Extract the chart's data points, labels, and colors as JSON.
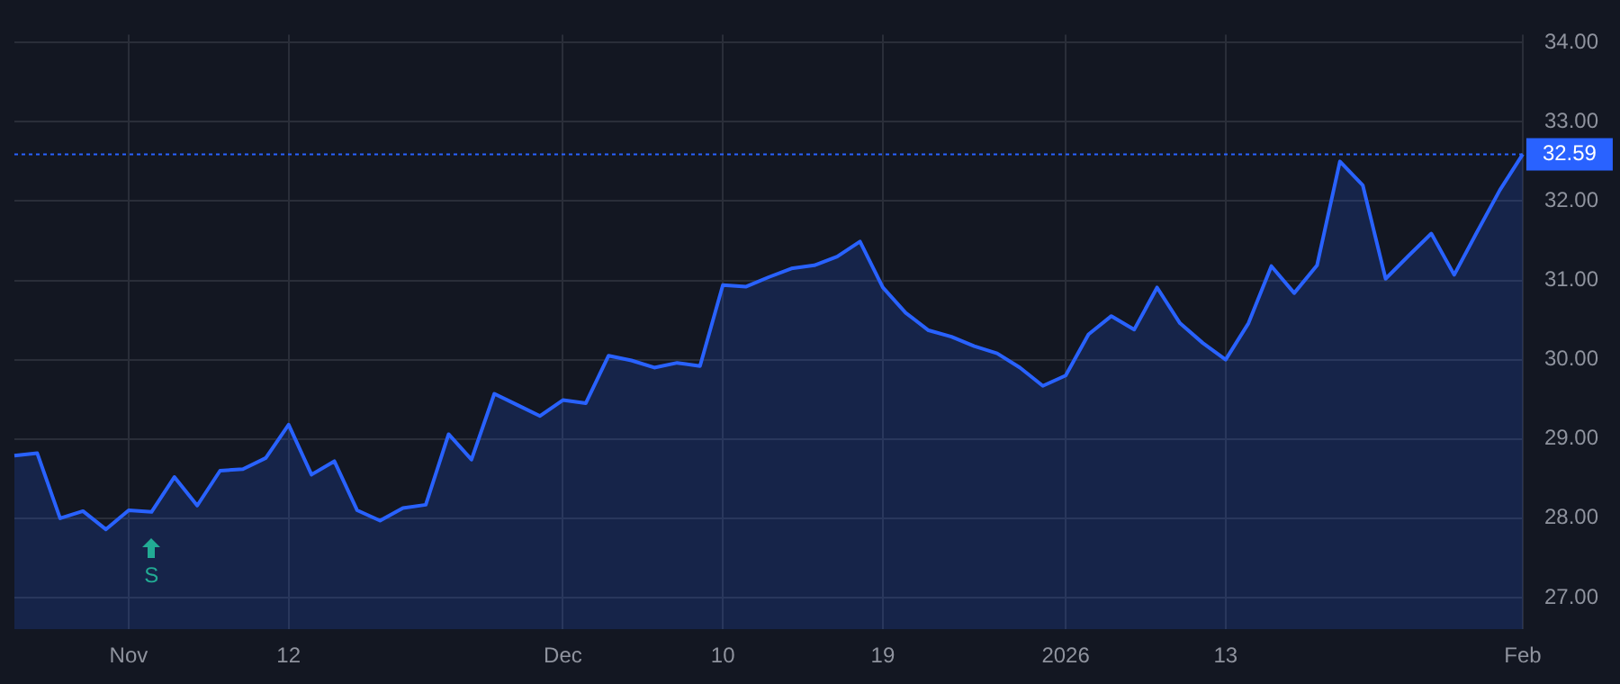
{
  "chart_data": {
    "type": "area",
    "categories": [
      null,
      null,
      null,
      null,
      null,
      "Nov",
      null,
      null,
      null,
      null,
      null,
      null,
      "12",
      null,
      null,
      null,
      null,
      null,
      null,
      null,
      null,
      null,
      null,
      null,
      "Dec",
      null,
      null,
      null,
      null,
      null,
      null,
      "10",
      null,
      null,
      null,
      null,
      null,
      null,
      "19",
      null,
      null,
      null,
      null,
      null,
      null,
      null,
      "2026",
      null,
      null,
      null,
      null,
      null,
      null,
      "13",
      null,
      null,
      null,
      null,
      null,
      null,
      null,
      null,
      null,
      null,
      null,
      null,
      "Feb"
    ],
    "series": [
      {
        "color": "#2962ff",
        "values": [
          28.79,
          28.82,
          28.0,
          28.09,
          27.86,
          28.1,
          28.08,
          28.52,
          28.16,
          28.6,
          28.62,
          28.76,
          29.18,
          28.55,
          28.72,
          28.1,
          27.97,
          28.13,
          28.17,
          29.06,
          28.74,
          29.57,
          29.43,
          29.29,
          29.49,
          29.45,
          30.05,
          29.99,
          29.9,
          29.96,
          29.92,
          30.94,
          30.92,
          31.04,
          31.15,
          31.19,
          31.3,
          31.49,
          30.91,
          30.59,
          30.37,
          30.29,
          30.17,
          30.08,
          29.9,
          29.67,
          29.8,
          30.32,
          30.55,
          30.38,
          30.91,
          30.46,
          30.21,
          30.0,
          30.46,
          31.18,
          30.84,
          31.19,
          32.5,
          32.2,
          31.02,
          31.31,
          31.59,
          31.07,
          31.61,
          32.14,
          32.59
        ]
      }
    ],
    "ylim": [
      26.6,
      34.1
    ],
    "yticks": [
      {
        "value": 27,
        "label": "27.00"
      },
      {
        "value": 28,
        "label": "28.00"
      },
      {
        "value": 29,
        "label": "29.00"
      },
      {
        "value": 30,
        "label": "30.00"
      },
      {
        "value": 31,
        "label": "31.00"
      },
      {
        "value": 32,
        "label": "32.00"
      },
      {
        "value": 33,
        "label": "33.00"
      },
      {
        "value": 34,
        "label": "34.00"
      }
    ],
    "ref_lines": [
      {
        "axis": "y",
        "value": 32.59,
        "label": "32.59",
        "color": "#2962ff",
        "line_style": "dotted"
      }
    ],
    "annotations": [
      "S"
    ],
    "grid": true,
    "legend": false,
    "marker": "none",
    "line_style": "solid"
  }
}
